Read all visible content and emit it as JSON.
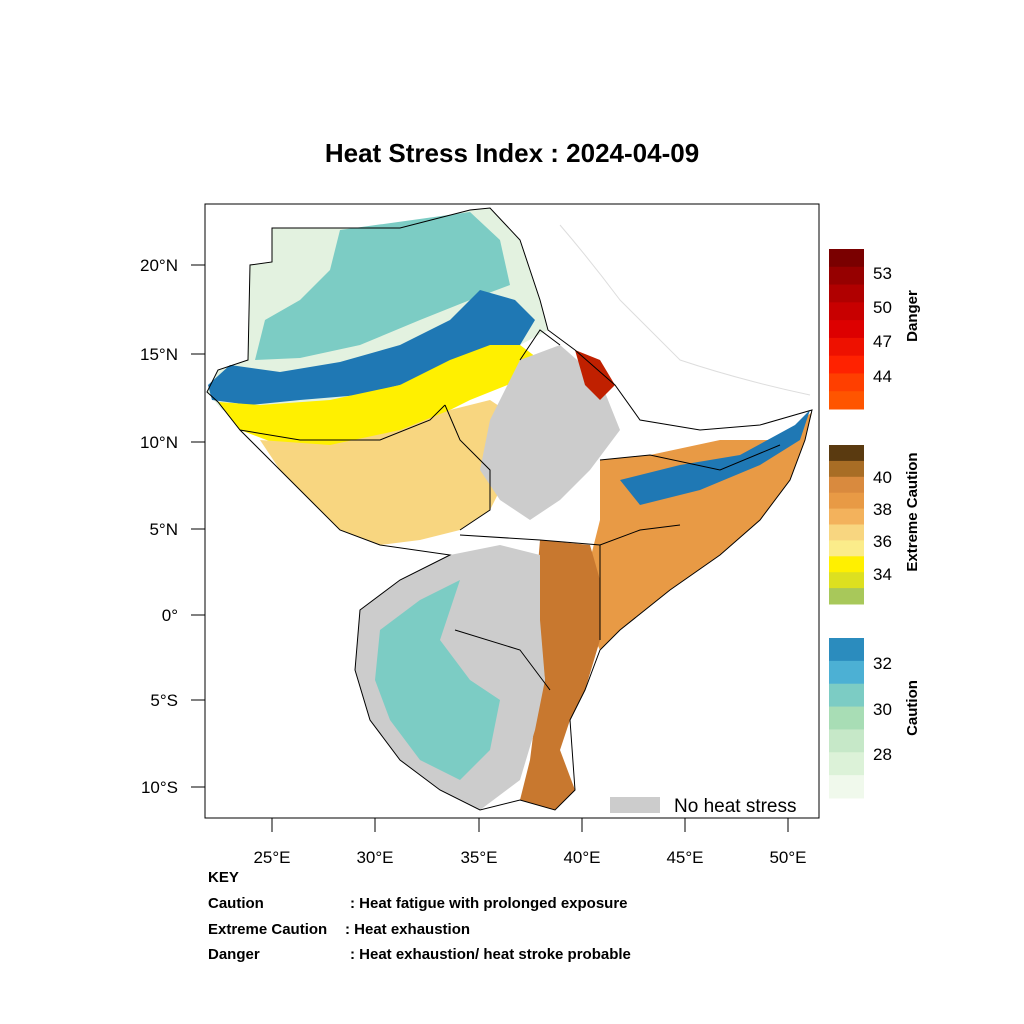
{
  "title": "Heat Stress Index : 2024-04-09",
  "lat_ticks": [
    "20°N",
    "15°N",
    "10°N",
    "5°N",
    "0°",
    "5°S",
    "10°S"
  ],
  "lon_ticks": [
    "25°E",
    "30°E",
    "35°E",
    "40°E",
    "45°E",
    "50°E"
  ],
  "colorbars": {
    "danger": {
      "label": "Danger",
      "ticks": [
        "53",
        "50",
        "47",
        "44"
      ],
      "colors": [
        "#7a0000",
        "#960000",
        "#b00000",
        "#c80000",
        "#dd0000",
        "#ee1100",
        "#ff2200",
        "#ff3f00",
        "#ff5500"
      ]
    },
    "extreme": {
      "label": "Extreme Caution",
      "ticks": [
        "40",
        "38",
        "36",
        "34"
      ],
      "colors": [
        "#5a3a10",
        "#a86d25",
        "#d98a3e",
        "#e89a45",
        "#f3b25c",
        "#f8d680",
        "#fbec8a",
        "#fff000",
        "#dde020",
        "#a8c85a"
      ]
    },
    "caution": {
      "label": "Caution",
      "ticks": [
        "32",
        "30",
        "28"
      ],
      "colors": [
        "#2b8cbe",
        "#4cb0d4",
        "#7cccc4",
        "#a8ddb5",
        "#c6e8c8",
        "#dcf2d8",
        "#f0f9ec"
      ]
    }
  },
  "legend": {
    "no_heat_stress": "No heat stress",
    "no_heat_color": "#cccccc"
  },
  "key": {
    "heading": "KEY",
    "rows": [
      {
        "term": "Caution",
        "desc": ": Heat fatigue with prolonged exposure"
      },
      {
        "term": "Extreme Caution",
        "desc": " : Heat exhaustion"
      },
      {
        "term": "Danger",
        "desc": ": Heat exhaustion/ heat stroke probable"
      }
    ]
  },
  "palette": {
    "sahara_light": "#e3f2e0",
    "sahara_mid": "#a8ddb5",
    "teal": "#7cccc4",
    "blue": "#1f78b4",
    "yellow": "#fff000",
    "light_orange": "#f8d680",
    "orange": "#e89a45",
    "brown": "#c8782f",
    "grey": "#cccccc"
  }
}
